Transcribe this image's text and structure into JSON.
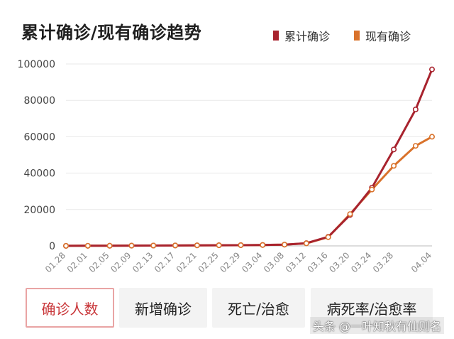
{
  "title": "累计确诊/现有确诊趋势",
  "legend": [
    {
      "label": "累计确诊",
      "color": "#a8232e"
    },
    {
      "label": "现有确诊",
      "color": "#d9722b"
    }
  ],
  "tabs": [
    {
      "label": "确诊人数",
      "active": true
    },
    {
      "label": "新增确诊",
      "active": false
    },
    {
      "label": "死亡/治愈",
      "active": false
    },
    {
      "label": "病死率/治愈率",
      "active": false
    }
  ],
  "watermark": "头条 @一叶知秋有仙则名",
  "chart_data": {
    "type": "line",
    "title": "累计确诊/现有确诊趋势",
    "x_tick_labels": [
      "01.28",
      "02.01",
      "02.05",
      "02.09",
      "02.13",
      "02.17",
      "02.21",
      "02.25",
      "02.29",
      "03.04",
      "03.08",
      "03.12",
      "03.16",
      "03.20",
      "03.24",
      "03.28",
      "04.04"
    ],
    "y_ticks": [
      0,
      20000,
      40000,
      60000,
      80000,
      100000
    ],
    "ylim": [
      0,
      100000
    ],
    "grid": true,
    "legend_position": "top-right",
    "series": [
      {
        "name": "累计确诊",
        "color": "#a8232e",
        "points": [
          {
            "x": "01.28",
            "y": 30
          },
          {
            "x": "02.01",
            "y": 70
          },
          {
            "x": "02.05",
            "y": 90
          },
          {
            "x": "02.09",
            "y": 150
          },
          {
            "x": "02.13",
            "y": 200
          },
          {
            "x": "02.17",
            "y": 250
          },
          {
            "x": "02.21",
            "y": 300
          },
          {
            "x": "02.25",
            "y": 350
          },
          {
            "x": "02.29",
            "y": 400
          },
          {
            "x": "03.04",
            "y": 500
          },
          {
            "x": "03.08",
            "y": 700
          },
          {
            "x": "03.12",
            "y": 1500
          },
          {
            "x": "03.16",
            "y": 5000
          },
          {
            "x": "03.20",
            "y": 17000
          },
          {
            "x": "03.24",
            "y": 32000
          },
          {
            "x": "03.28",
            "y": 53000
          },
          {
            "x": "04.01",
            "y": 75000
          },
          {
            "x": "04.04",
            "y": 97000
          }
        ]
      },
      {
        "name": "现有确诊",
        "color": "#d9722b",
        "points": [
          {
            "x": "01.28",
            "y": 30
          },
          {
            "x": "02.01",
            "y": 70
          },
          {
            "x": "02.05",
            "y": 90
          },
          {
            "x": "02.09",
            "y": 150
          },
          {
            "x": "02.13",
            "y": 200
          },
          {
            "x": "02.17",
            "y": 250
          },
          {
            "x": "02.21",
            "y": 300
          },
          {
            "x": "02.25",
            "y": 350
          },
          {
            "x": "02.29",
            "y": 400
          },
          {
            "x": "03.04",
            "y": 500
          },
          {
            "x": "03.08",
            "y": 700
          },
          {
            "x": "03.12",
            "y": 1400
          },
          {
            "x": "03.16",
            "y": 4800
          },
          {
            "x": "03.20",
            "y": 17500
          },
          {
            "x": "03.24",
            "y": 31000
          },
          {
            "x": "03.28",
            "y": 44000
          },
          {
            "x": "04.01",
            "y": 55000
          },
          {
            "x": "04.04",
            "y": 60000
          }
        ]
      }
    ]
  }
}
